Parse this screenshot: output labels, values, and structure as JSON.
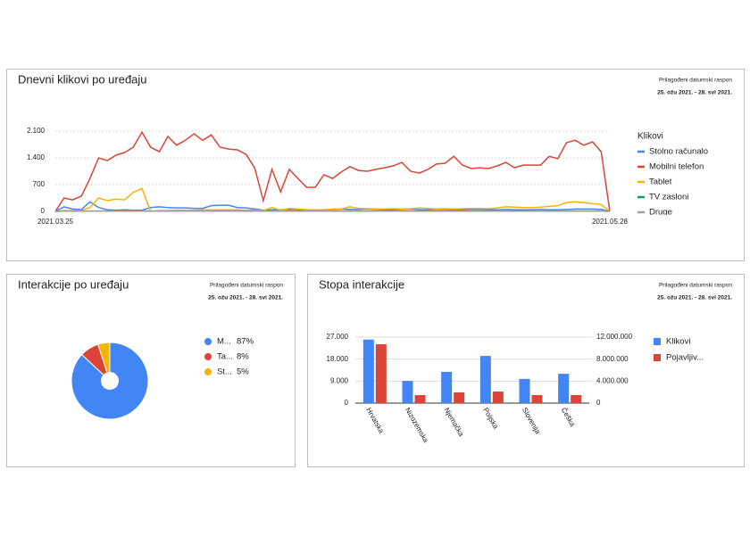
{
  "chart_data": [
    {
      "type": "line",
      "title": "Dnevni klikovi po uređaju",
      "subtitle": "Prilagođeni datumski raspon",
      "date_range": "25. ožu 2021. - 28. svi 2021.",
      "legend_title": "Klikovi",
      "legend": "right",
      "grid": true,
      "categories": [
        "2021.03.25",
        null,
        null,
        null,
        null,
        null,
        null,
        null,
        null,
        null,
        null,
        null,
        null,
        null,
        null,
        null,
        null,
        null,
        null,
        null,
        null,
        null,
        null,
        null,
        null,
        null,
        null,
        null,
        null,
        null,
        null,
        null,
        null,
        null,
        null,
        null,
        null,
        null,
        null,
        null,
        null,
        null,
        null,
        null,
        null,
        null,
        null,
        null,
        null,
        null,
        null,
        null,
        null,
        null,
        null,
        null,
        null,
        null,
        null,
        null,
        null,
        null,
        null,
        null,
        "2021.05.28"
      ],
      "ylim": [
        0,
        2100
      ],
      "yticks": [
        0,
        700,
        {
          "value": 1400,
          "label": "1.400"
        },
        {
          "value": 2100,
          "label": "2.100"
        }
      ],
      "series": [
        {
          "name": "Stolno računalo",
          "color": "#4285f4",
          "values": [
            0,
            120,
            60,
            50,
            250,
            100,
            40,
            30,
            40,
            30,
            30,
            100,
            120,
            100,
            90,
            90,
            80,
            80,
            150,
            160,
            160,
            100,
            90,
            60,
            30,
            40,
            40,
            50,
            40,
            40,
            40,
            40,
            50,
            60,
            50,
            50,
            60,
            50,
            40,
            40,
            50,
            60,
            40,
            40,
            50,
            50,
            40,
            40,
            50,
            50,
            40,
            40,
            50,
            40,
            40,
            40,
            50,
            40,
            40,
            50,
            60,
            60,
            60,
            50,
            0
          ]
        },
        {
          "name": "Mobilni telefon",
          "color": "#db4437",
          "values": [
            0,
            350,
            300,
            400,
            860,
            1400,
            1330,
            1470,
            1540,
            1680,
            2070,
            1680,
            1560,
            1960,
            1730,
            1860,
            2030,
            1860,
            2000,
            1680,
            1630,
            1610,
            1490,
            1140,
            280,
            1100,
            510,
            1100,
            860,
            630,
            630,
            960,
            860,
            1030,
            1170,
            1070,
            1050,
            1100,
            1140,
            1190,
            1280,
            1050,
            1000,
            1100,
            1240,
            1260,
            1440,
            1210,
            1120,
            1140,
            1120,
            1190,
            1280,
            1140,
            1210,
            1210,
            1210,
            1440,
            1380,
            1800,
            1860,
            1730,
            1820,
            1560,
            0
          ]
        },
        {
          "name": "Tablet",
          "color": "#f4b400",
          "values": [
            0,
            20,
            20,
            30,
            100,
            350,
            280,
            320,
            300,
            500,
            600,
            0,
            20,
            20,
            30,
            30,
            30,
            40,
            40,
            40,
            40,
            40,
            30,
            30,
            20,
            100,
            30,
            80,
            60,
            40,
            40,
            40,
            60,
            60,
            120,
            80,
            70,
            60,
            60,
            70,
            60,
            70,
            90,
            80,
            60,
            70,
            60,
            70,
            80,
            80,
            70,
            90,
            120,
            110,
            100,
            100,
            110,
            130,
            150,
            230,
            250,
            230,
            200,
            180,
            0
          ]
        },
        {
          "name": "TV zasloni",
          "color": "#0f9d58",
          "values": [
            0,
            10,
            10,
            10,
            10,
            10,
            10,
            10,
            10,
            10,
            10,
            10,
            10,
            10,
            10,
            10,
            10,
            10,
            10,
            10,
            10,
            10,
            10,
            10,
            10,
            10,
            10,
            10,
            10,
            10,
            10,
            10,
            10,
            10,
            10,
            10,
            10,
            10,
            10,
            10,
            10,
            10,
            10,
            10,
            10,
            10,
            10,
            10,
            10,
            10,
            10,
            10,
            10,
            10,
            10,
            10,
            10,
            10,
            10,
            10,
            10,
            10,
            10,
            10,
            0
          ]
        },
        {
          "name": "Druge",
          "color": "#9e9e9e",
          "values": [
            0,
            5,
            5,
            5,
            5,
            5,
            5,
            5,
            5,
            5,
            5,
            5,
            5,
            5,
            5,
            5,
            5,
            5,
            5,
            5,
            5,
            5,
            5,
            5,
            5,
            5,
            5,
            5,
            5,
            5,
            5,
            5,
            5,
            5,
            5,
            5,
            5,
            5,
            5,
            5,
            5,
            5,
            5,
            5,
            5,
            5,
            5,
            5,
            5,
            5,
            5,
            5,
            5,
            5,
            5,
            5,
            5,
            5,
            5,
            5,
            5,
            5,
            5,
            5,
            0
          ]
        }
      ]
    },
    {
      "type": "pie",
      "title": "Interakcije po uređaju",
      "subtitle": "Prilagođeni datumski raspon",
      "date_range": "25. ožu 2021. - 28. svi 2021.",
      "donut": true,
      "legend": "right",
      "categories": [
        "M...",
        "Ta...",
        "St..."
      ],
      "values": [
        87,
        8,
        5
      ],
      "value_labels": [
        "87%",
        "8%",
        "5%"
      ],
      "colors": [
        "#4285f4",
        "#db4437",
        "#f4b400"
      ]
    },
    {
      "type": "bar",
      "title": "Stopa interakcije",
      "subtitle": "Prilagođeni datumski raspon",
      "date_range": "25. ožu 2021. - 28. svi 2021.",
      "legend": "right",
      "grid": true,
      "categories": [
        "Hrvatska",
        "Nizozemska",
        "Njemačka",
        "Poljska",
        "Slovenija",
        "Češka"
      ],
      "ylim": [
        0,
        27000
      ],
      "yticks": [
        0,
        {
          "value": 9000,
          "label": "9.000"
        },
        {
          "value": 18000,
          "label": "18.000"
        },
        {
          "value": 27000,
          "label": "27.000"
        }
      ],
      "y2lim": [
        0,
        12000000
      ],
      "y2ticks": [
        0,
        {
          "value": 4000000,
          "label": "4.000.000"
        },
        {
          "value": 8000000,
          "label": "8.000.000"
        },
        {
          "value": 12000000,
          "label": "12.000.000"
        }
      ],
      "series": [
        {
          "name": "Klikovi",
          "color": "#4285f4",
          "values": [
            26000,
            9100,
            12800,
            19300,
            9900,
            12000
          ]
        },
        {
          "name": "Pojavljiv...",
          "color": "#db4437",
          "axis": "y2",
          "values": [
            10700000,
            1460000,
            1950000,
            2100000,
            1460000,
            1460000
          ]
        }
      ]
    }
  ]
}
